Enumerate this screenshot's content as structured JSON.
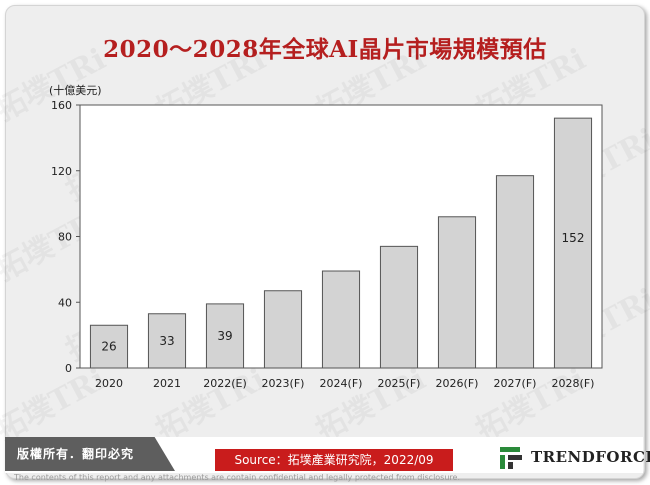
{
  "title": "2020～2028年全球AI晶片市場規模預估",
  "unit_label": "(十億美元)",
  "watermark_text": "拓墣TRi",
  "footer": {
    "copyright": "版權所有．翻印必究",
    "source": "Source：拓墣產業研究院，2022/09",
    "brand_name": "TRENDFORCE",
    "disclaimer": "The contents of this report and any attachments are contain confidential and legally protected from disclosure."
  },
  "colors": {
    "title": "#b51f1f",
    "bar_fill": "#d3d3d3",
    "bar_stroke": "#555555",
    "source_bg": "#c91c1c",
    "copyright_bg": "#5e5e5e"
  },
  "chart_data": {
    "type": "bar",
    "categories": [
      "2020",
      "2021",
      "2022(E)",
      "2023(F)",
      "2024(F)",
      "2025(F)",
      "2026(F)",
      "2027(F)",
      "2028(F)"
    ],
    "values": [
      26,
      33,
      39,
      47,
      59,
      74,
      92,
      117,
      152
    ],
    "data_labels": [
      "26",
      "33",
      "39",
      "",
      "",
      "",
      "",
      "",
      "152"
    ],
    "ylim": [
      0,
      160
    ],
    "yticks": [
      0,
      40,
      80,
      120,
      160
    ],
    "ylabel": "(十億美元)",
    "grid": false,
    "legend": "none"
  }
}
